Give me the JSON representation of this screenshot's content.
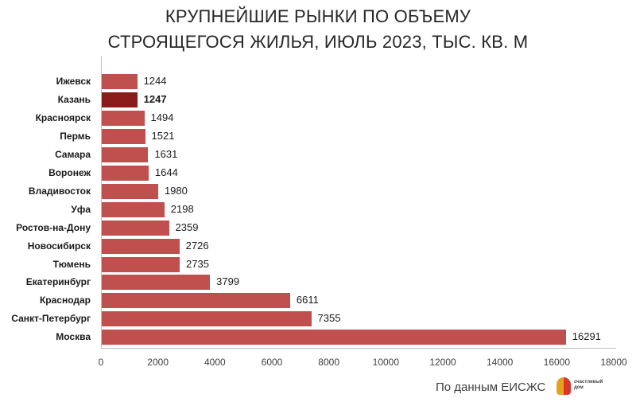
{
  "title": {
    "line1": "КРУПНЕЙШИЕ РЫНКИ ПО ОБЪЕМУ",
    "line2": "СТРОЯЩЕГОСЯ ЖИЛЬЯ, ИЮЛЬ 2023, ТЫС. КВ. М"
  },
  "source": {
    "text": "По данным ЕИСЖС",
    "logo_line1": "счастливый",
    "logo_line2": "дом"
  },
  "colors": {
    "bar": "#c0504d",
    "highlight": "#8b1a1a"
  },
  "chart_data": {
    "type": "bar",
    "orientation": "horizontal",
    "title": "Крупнейшие рынки по объему строящегося жилья, июль 2023, тыс. кв. м",
    "xlabel": "",
    "ylabel": "",
    "xlim": [
      0,
      18000
    ],
    "x_ticks": [
      "0",
      "2000",
      "4000",
      "6000",
      "8000",
      "10000",
      "12000",
      "14000",
      "16000",
      "18000"
    ],
    "grid": false,
    "legend": null,
    "highlighted": "Казань",
    "categories": [
      "Ижевск",
      "Казань",
      "Красноярск",
      "Пермь",
      "Самара",
      "Воронеж",
      "Владивосток",
      "Уфа",
      "Ростов-на-Дону",
      "Новосибирск",
      "Тюмень",
      "Екатеринбург",
      "Краснодар",
      "Санкт-Петербург",
      "Москва"
    ],
    "values": [
      1244,
      1247,
      1494,
      1521,
      1631,
      1644,
      1980,
      2198,
      2359,
      2726,
      2735,
      3799,
      6611,
      7355,
      16291
    ],
    "value_labels": [
      "1244",
      "1247",
      "1494",
      "1521",
      "1631",
      "1644",
      "1980",
      "2198",
      "2359",
      "2726",
      "2735",
      "3799",
      "6611",
      "7355",
      "16291"
    ]
  }
}
